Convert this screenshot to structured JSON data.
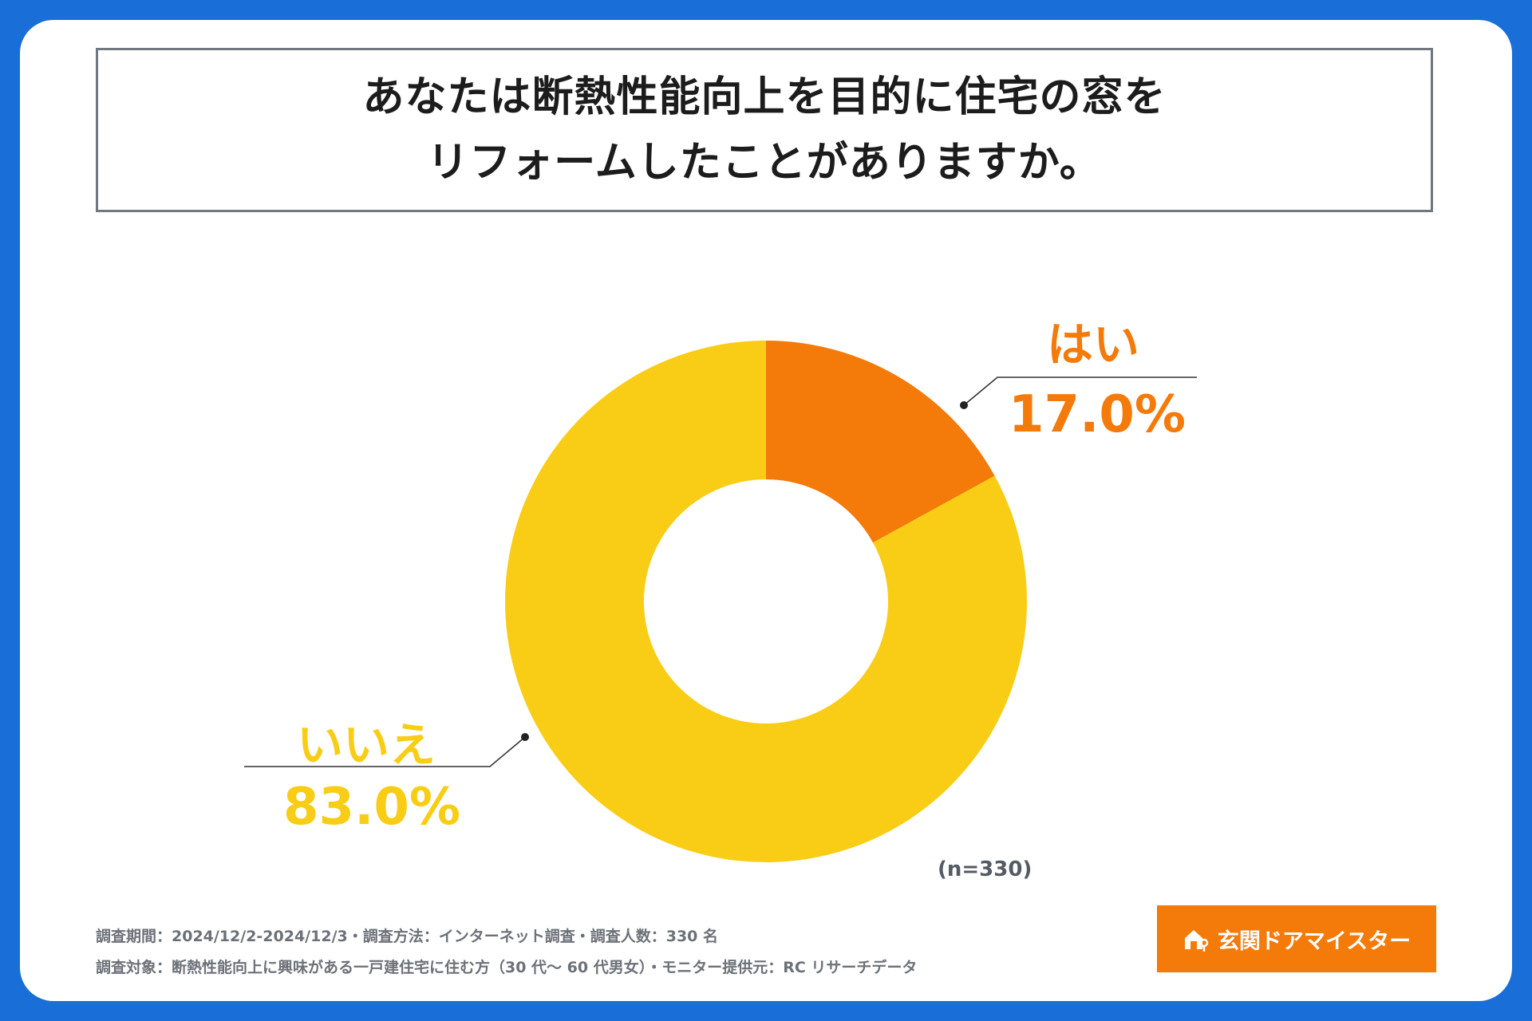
{
  "title": {
    "line1": "あなたは断熱性能向上を目的に住宅の窓を",
    "line2": "リフォームしたことがありますか。"
  },
  "chart_data": {
    "type": "pie",
    "categories": [
      "はい",
      "いいえ"
    ],
    "values": [
      17.0,
      83.0
    ],
    "value_labels": [
      "17.0%",
      "83.0%"
    ],
    "colors": [
      "#f47a0a",
      "#f9cd15"
    ],
    "n_label": "(n=330)"
  },
  "footer": {
    "line1": "調査期間：2024/12/2-2024/12/3・調査方法：インターネット調査・調査人数：330 名",
    "line2": "調査対象：断熱性能向上に興味がある一戸建住宅に住む方（30 代～ 60 代男女）・モニター提供元：RC リサーチデータ"
  },
  "brand": {
    "name": "玄関ドアマイスター",
    "icon": "house-key-icon",
    "color": "#f47a0a"
  }
}
